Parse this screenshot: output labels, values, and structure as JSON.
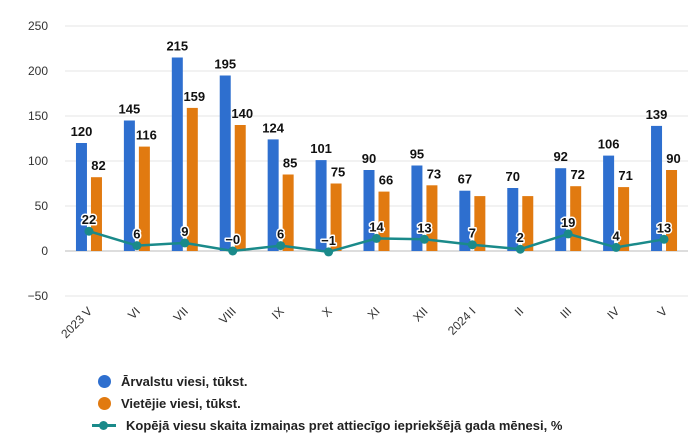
{
  "chart_data": {
    "type": "bar",
    "categories": [
      "2023 V",
      "VI",
      "VII",
      "VIII",
      "IX",
      "X",
      "XI",
      "XII",
      "2024 I",
      "II",
      "III",
      "IV",
      "V"
    ],
    "series": [
      {
        "name": "Ārvalstu viesi, tūkst.",
        "type": "bar",
        "color": "#2e6fcf",
        "values": [
          120,
          145,
          215,
          195,
          124,
          101,
          90,
          95,
          67,
          70,
          92,
          106,
          139
        ],
        "labels": [
          "120",
          "145",
          "215",
          "195",
          "124",
          "101",
          "90",
          "95",
          "67",
          "70",
          "92",
          "106",
          "139"
        ]
      },
      {
        "name": "Vietējie viesi, tūkst.",
        "type": "bar",
        "color": "#e17a10",
        "values": [
          82,
          116,
          159,
          140,
          85,
          75,
          66,
          73,
          61,
          61,
          72,
          71,
          90
        ],
        "labels": [
          "82",
          "116",
          "159",
          "140",
          "85",
          "75",
          "66",
          "73",
          "",
          "",
          "72",
          "71",
          "90"
        ]
      },
      {
        "name": "Kopējā viesu skaita izmaiņas pret attiecīgo iepriekšējā gada mēnesi, %",
        "type": "line",
        "color": "#1a8a8a",
        "values": [
          22,
          6,
          9,
          0,
          6,
          -1,
          14,
          13,
          7,
          2,
          19,
          4,
          13
        ],
        "labels": [
          "22",
          "6",
          "9",
          "−0",
          "6",
          "−1",
          "14",
          "13",
          "7",
          "2",
          "19",
          "4",
          "13"
        ]
      }
    ],
    "y_ticks": [
      "250",
      "200",
      "150",
      "100",
      "50",
      "0",
      "−50"
    ],
    "ylim": [
      -50,
      250
    ],
    "grid": true,
    "legend_position": "bottom-left",
    "xlabel": "",
    "ylabel": ""
  }
}
